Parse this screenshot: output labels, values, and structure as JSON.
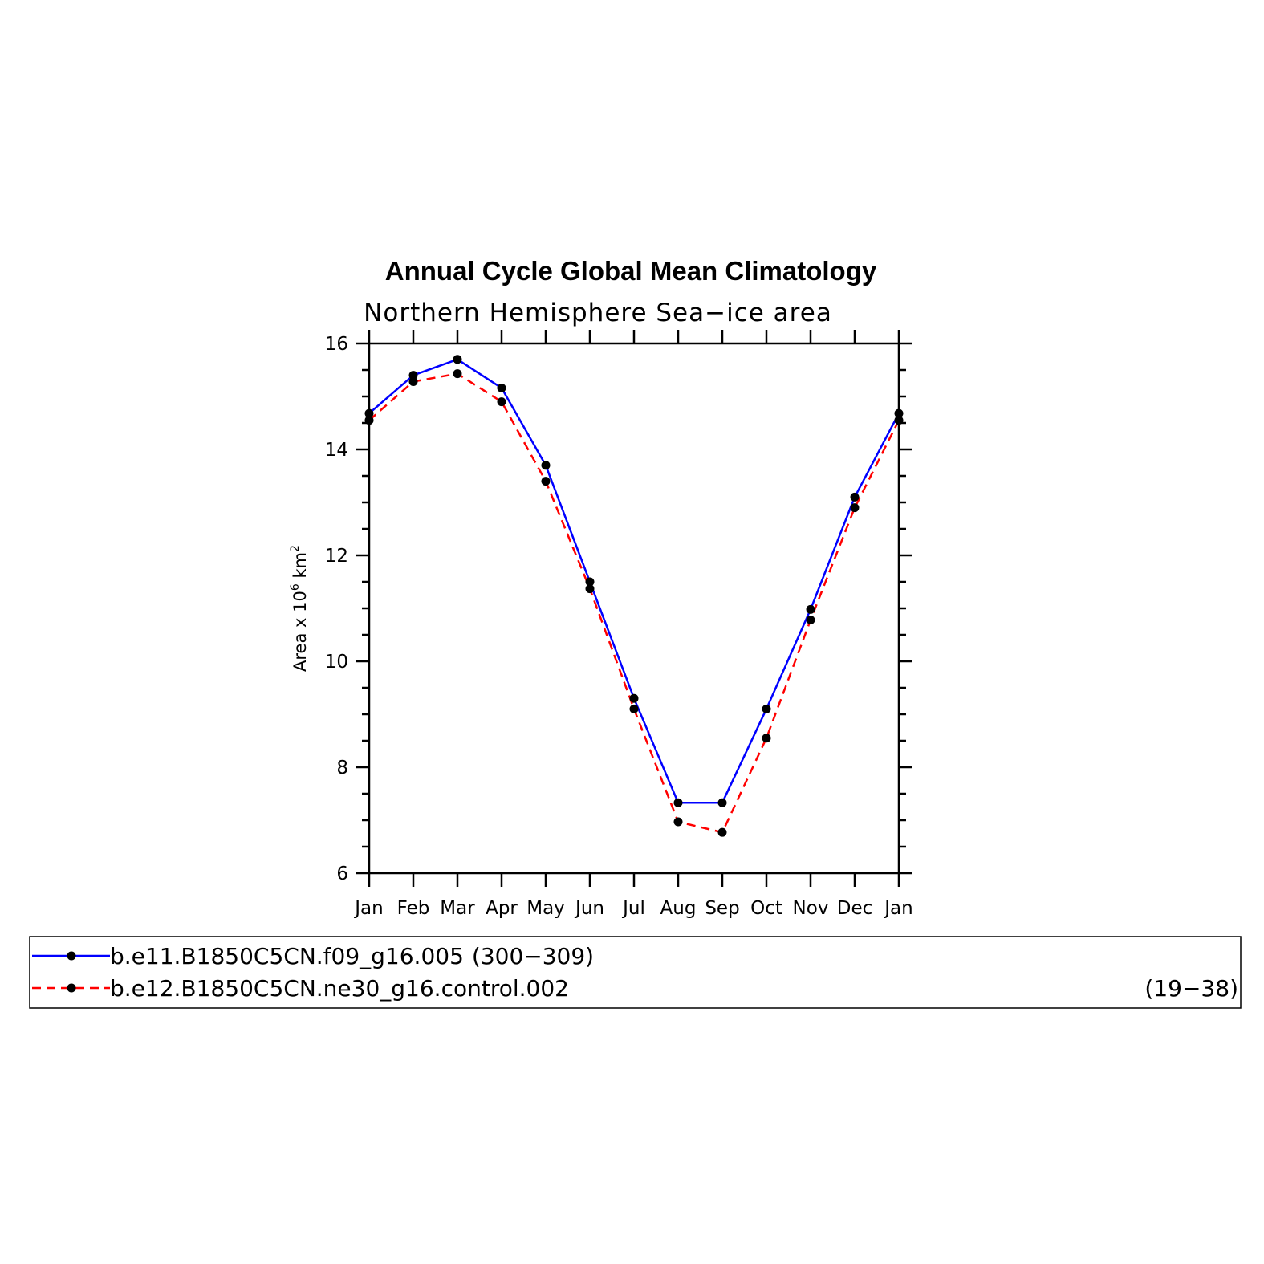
{
  "chart_data": {
    "type": "line",
    "title": "Annual Cycle Global Mean Climatology",
    "subtitle": "Northern Hemisphere Sea−ice area",
    "ylabel": {
      "base": "Area x 10",
      "exponent": "6",
      "unit": " km",
      "unit_exponent": "2"
    },
    "categories": [
      "Jan",
      "Feb",
      "Mar",
      "Apr",
      "May",
      "Jun",
      "Jul",
      "Aug",
      "Sep",
      "Oct",
      "Nov",
      "Dec",
      "Jan"
    ],
    "ylim": [
      6,
      16
    ],
    "yticks": [
      6,
      8,
      10,
      12,
      14,
      16
    ],
    "y_minor_step": 0.5,
    "series": [
      {
        "name": "b.e11.B1850C5CN.f09_g16.005",
        "years": "(300−309)",
        "color": "#0000ff",
        "dash": "solid",
        "values": [
          14.68,
          15.4,
          15.7,
          15.16,
          13.7,
          11.5,
          9.3,
          7.33,
          7.33,
          9.1,
          10.98,
          13.1,
          14.68
        ]
      },
      {
        "name": "b.e12.B1850C5CN.ne30_g16.control.002",
        "years": "(19−38)",
        "color": "#ff0000",
        "dash": "dashed",
        "values": [
          14.55,
          15.28,
          15.43,
          14.9,
          13.4,
          11.37,
          9.1,
          6.97,
          6.77,
          8.55,
          10.78,
          12.9,
          14.55
        ]
      }
    ],
    "marker_color": "#000000",
    "grid": false,
    "legend_position": "bottom"
  }
}
